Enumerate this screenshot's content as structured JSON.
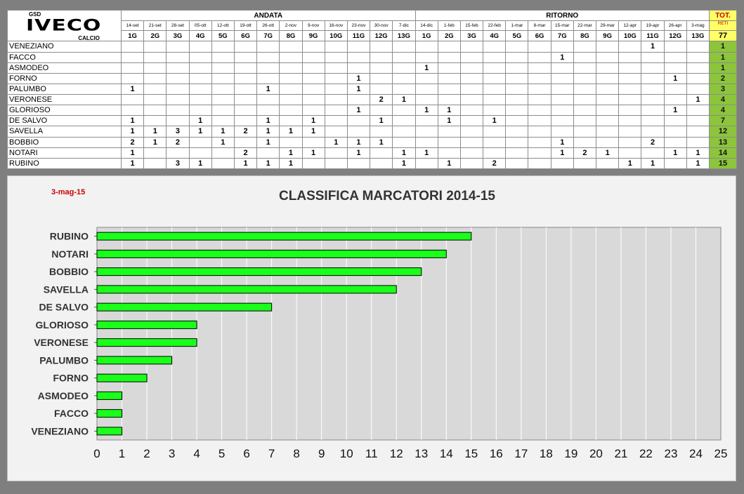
{
  "header": {
    "logo_top": "GSD",
    "logo_main": "IVECO",
    "logo_bottom": "CALCIO",
    "andata_label": "ANDATA",
    "ritorno_label": "RITORNO",
    "tot_label_1": "TOT.",
    "tot_label_2": "RETI",
    "total": "77"
  },
  "dates": [
    "14-set",
    "21-set",
    "28-set",
    "05-ott",
    "12-ott",
    "19-ott",
    "26-ott",
    "2-nov",
    "9-nov",
    "16-nov",
    "23-nov",
    "30-nov",
    "7-dic",
    "14-dic",
    "1-feb",
    "15-feb",
    "22-feb",
    "1-mar",
    "8-mar",
    "15-mar",
    "22-mar",
    "29-mar",
    "12-apr",
    "19-apr",
    "26-apr",
    "3-mag"
  ],
  "rounds": [
    "1G",
    "2G",
    "3G",
    "4G",
    "5G",
    "6G",
    "7G",
    "8G",
    "9G",
    "10G",
    "11G",
    "12G",
    "13G",
    "1G",
    "2G",
    "3G",
    "4G",
    "5G",
    "6G",
    "7G",
    "8G",
    "9G",
    "10G",
    "11G",
    "12G",
    "13G"
  ],
  "players": [
    {
      "name": "VENEZIANO",
      "goals": [
        "",
        "",
        "",
        "",
        "",
        "",
        "",
        "",
        "",
        "",
        "",
        "",
        "",
        "",
        "",
        "",
        "",
        "",
        "",
        "",
        "",
        "",
        "",
        "1",
        "",
        ""
      ],
      "tot": "1"
    },
    {
      "name": "FACCO",
      "goals": [
        "",
        "",
        "",
        "",
        "",
        "",
        "",
        "",
        "",
        "",
        "",
        "",
        "",
        "",
        "",
        "",
        "",
        "",
        "",
        "1",
        "",
        "",
        "",
        "",
        "",
        ""
      ],
      "tot": "1"
    },
    {
      "name": "ASMODEO",
      "goals": [
        "",
        "",
        "",
        "",
        "",
        "",
        "",
        "",
        "",
        "",
        "",
        "",
        "",
        "1",
        "",
        "",
        "",
        "",
        "",
        "",
        "",
        "",
        "",
        "",
        "",
        ""
      ],
      "tot": "1"
    },
    {
      "name": "FORNO",
      "goals": [
        "",
        "",
        "",
        "",
        "",
        "",
        "",
        "",
        "",
        "",
        "1",
        "",
        "",
        "",
        "",
        "",
        "",
        "",
        "",
        "",
        "",
        "",
        "",
        "",
        "1",
        ""
      ],
      "tot": "2"
    },
    {
      "name": "PALUMBO",
      "goals": [
        "1",
        "",
        "",
        "",
        "",
        "",
        "1",
        "",
        "",
        "",
        "1",
        "",
        "",
        "",
        "",
        "",
        "",
        "",
        "",
        "",
        "",
        "",
        "",
        "",
        "",
        ""
      ],
      "tot": "3"
    },
    {
      "name": "VERONESE",
      "goals": [
        "",
        "",
        "",
        "",
        "",
        "",
        "",
        "",
        "",
        "",
        "",
        "2",
        "1",
        "",
        "",
        "",
        "",
        "",
        "",
        "",
        "",
        "",
        "",
        "",
        "",
        "1"
      ],
      "tot": "4"
    },
    {
      "name": "GLORIOSO",
      "goals": [
        "",
        "",
        "",
        "",
        "",
        "",
        "",
        "",
        "",
        "",
        "1",
        "",
        "",
        "1",
        "1",
        "",
        "",
        "",
        "",
        "",
        "",
        "",
        "",
        "",
        "1",
        ""
      ],
      "tot": "4"
    },
    {
      "name": "DE SALVO",
      "goals": [
        "1",
        "",
        "",
        "1",
        "",
        "",
        "1",
        "",
        "1",
        "",
        "",
        "1",
        "",
        "",
        "1",
        "",
        "1",
        "",
        "",
        "",
        "",
        "",
        "",
        "",
        "",
        ""
      ],
      "tot": "7"
    },
    {
      "name": "SAVELLA",
      "goals": [
        "1",
        "1",
        "3",
        "1",
        "1",
        "2",
        "1",
        "1",
        "1",
        "",
        "",
        "",
        "",
        "",
        "",
        "",
        "",
        "",
        "",
        "",
        "",
        "",
        "",
        "",
        "",
        ""
      ],
      "tot": "12"
    },
    {
      "name": "BOBBIO",
      "goals": [
        "2",
        "1",
        "2",
        "",
        "1",
        "",
        "1",
        "",
        "",
        "1",
        "1",
        "1",
        "",
        "",
        "",
        "",
        "",
        "",
        "",
        "1",
        "",
        "",
        "",
        "2",
        "",
        ""
      ],
      "tot": "13"
    },
    {
      "name": "NOTARI",
      "goals": [
        "1",
        "",
        "",
        "",
        "",
        "2",
        "",
        "1",
        "1",
        "",
        "1",
        "",
        "1",
        "1",
        "",
        "",
        "",
        "",
        "",
        "1",
        "2",
        "1",
        "",
        "",
        "1",
        "1"
      ],
      "tot": "14"
    },
    {
      "name": "RUBINO",
      "goals": [
        "1",
        "",
        "3",
        "1",
        "",
        "1",
        "1",
        "1",
        "",
        "",
        "",
        "",
        "1",
        "",
        "1",
        "",
        "2",
        "",
        "",
        "",
        "",
        "",
        "1",
        "1",
        "",
        "1"
      ],
      "tot": "15"
    }
  ],
  "chart_date": "3-mag-15",
  "chart_data": {
    "type": "bar",
    "orientation": "horizontal",
    "title": "CLASSIFICA MARCATORI 2014-15",
    "categories": [
      "RUBINO",
      "NOTARI",
      "BOBBIO",
      "SAVELLA",
      "DE SALVO",
      "GLORIOSO",
      "VERONESE",
      "PALUMBO",
      "FORNO",
      "ASMODEO",
      "FACCO",
      "VENEZIANO"
    ],
    "values": [
      15,
      14,
      13,
      12,
      7,
      4,
      4,
      3,
      2,
      1,
      1,
      1
    ],
    "xlim": [
      0,
      25
    ],
    "xticks": [
      0,
      1,
      2,
      3,
      4,
      5,
      6,
      7,
      8,
      9,
      10,
      11,
      12,
      13,
      14,
      15,
      16,
      17,
      18,
      19,
      20,
      21,
      22,
      23,
      24,
      25
    ],
    "grid": true,
    "bar_color": "#1aff1a",
    "plot_background": "#d9d9d9",
    "date_color": "#cc0000"
  }
}
